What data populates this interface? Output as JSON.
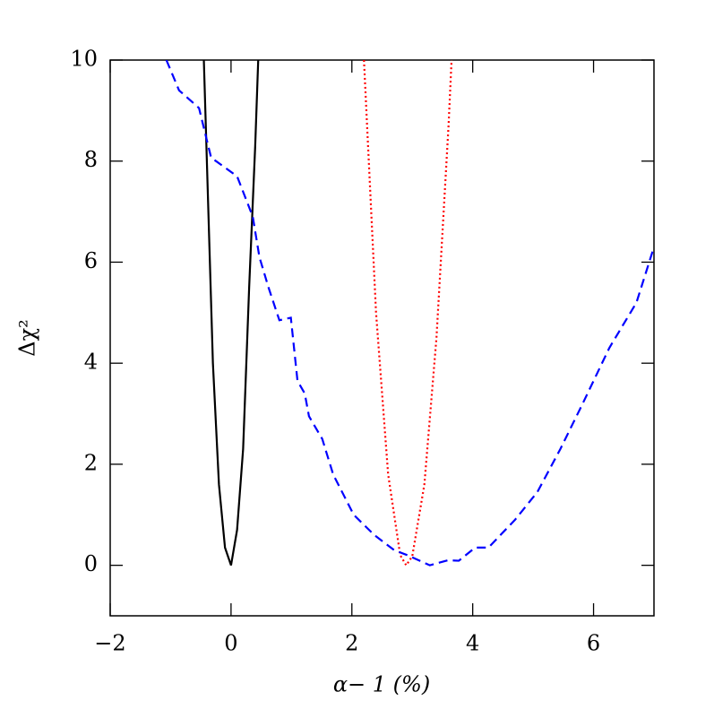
{
  "chart_data": {
    "type": "line",
    "x_label": "α− 1 (%)",
    "y_label": "Δχ²",
    "xlim": [
      -2,
      7
    ],
    "ylim": [
      -1,
      10
    ],
    "xticks": [
      {
        "value": -2,
        "label": "−2"
      },
      0,
      2,
      4,
      6
    ],
    "yticks": [
      0,
      2,
      4,
      6,
      8,
      10
    ],
    "series": [
      {
        "color": "#000000",
        "dash": "solid",
        "x": [
          -0.45,
          -0.3,
          -0.2,
          -0.1,
          0,
          0.1,
          0.2,
          0.3,
          0.4,
          0.45
        ],
        "values": [
          10,
          4,
          1.6,
          0.35,
          0,
          0.7,
          2.3,
          5.5,
          8.3,
          10
        ]
      },
      {
        "color": "#ff0000",
        "dash": "dotted",
        "x": [
          2.2,
          2.4,
          2.6,
          2.8,
          2.9,
          3.0,
          3.2,
          3.4,
          3.6,
          3.65
        ],
        "values": [
          10,
          5,
          1.8,
          0.2,
          0,
          0.18,
          1.6,
          4.5,
          8.7,
          10
        ]
      },
      {
        "color": "#0000ff",
        "dash": "dashed",
        "x": [
          -1.07,
          -0.86,
          -0.53,
          -0.33,
          0.1,
          0.36,
          0.47,
          0.62,
          0.8,
          0.99,
          1.1,
          1.22,
          1.29,
          1.51,
          1.69,
          2.03,
          2.37,
          2.7,
          2.92,
          3.29,
          3.59,
          3.77,
          4.04,
          4.26,
          4.7,
          5.07,
          5.45,
          5.82,
          6.26,
          6.71,
          7.0
        ],
        "values": [
          10,
          9.4,
          9.05,
          8.07,
          7.7,
          6.9,
          6.1,
          5.5,
          4.85,
          4.9,
          3.65,
          3.4,
          2.95,
          2.5,
          1.8,
          1.0,
          0.6,
          0.3,
          0.2,
          0.0,
          0.1,
          0.09,
          0.35,
          0.35,
          0.9,
          1.45,
          2.3,
          3.2,
          4.3,
          5.2,
          6.3
        ]
      }
    ]
  }
}
